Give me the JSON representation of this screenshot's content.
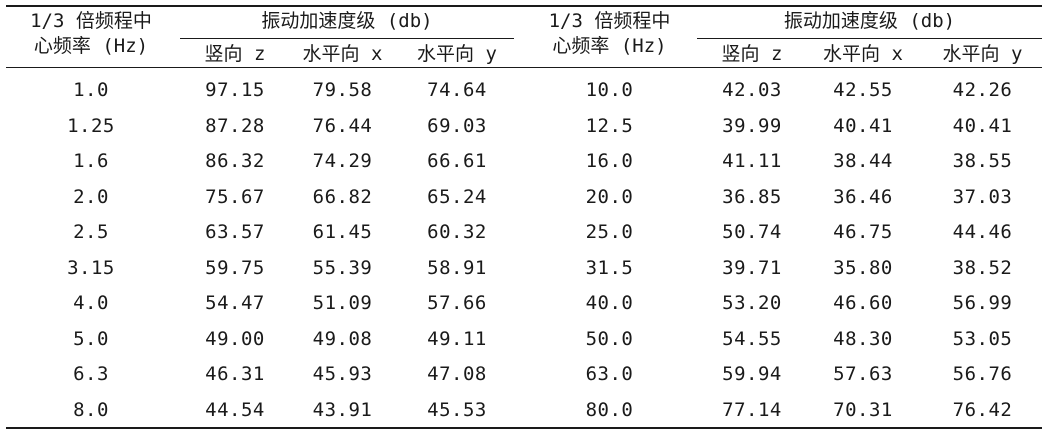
{
  "table": {
    "left": {
      "freq_header_line1": "1/3 倍频程中",
      "freq_header_line2": "心频率 (Hz)",
      "group_header": "振动加速度级 (db)",
      "col_vertical": "竖向 z",
      "col_horizontal_x": "水平向 x",
      "col_horizontal_y": "水平向 y",
      "rows": [
        {
          "freq": "1.0",
          "z": "97.15",
          "x": "79.58",
          "y": "74.64"
        },
        {
          "freq": "1.25",
          "z": "87.28",
          "x": "76.44",
          "y": "69.03"
        },
        {
          "freq": "1.6",
          "z": "86.32",
          "x": "74.29",
          "y": "66.61"
        },
        {
          "freq": "2.0",
          "z": "75.67",
          "x": "66.82",
          "y": "65.24"
        },
        {
          "freq": "2.5",
          "z": "63.57",
          "x": "61.45",
          "y": "60.32"
        },
        {
          "freq": "3.15",
          "z": "59.75",
          "x": "55.39",
          "y": "58.91"
        },
        {
          "freq": "4.0",
          "z": "54.47",
          "x": "51.09",
          "y": "57.66"
        },
        {
          "freq": "5.0",
          "z": "49.00",
          "x": "49.08",
          "y": "49.11"
        },
        {
          "freq": "6.3",
          "z": "46.31",
          "x": "45.93",
          "y": "47.08"
        },
        {
          "freq": "8.0",
          "z": "44.54",
          "x": "43.91",
          "y": "45.53"
        }
      ]
    },
    "right": {
      "freq_header_line1": "1/3 倍频程中",
      "freq_header_line2": "心频率 (Hz)",
      "group_header": "振动加速度级 (db)",
      "col_vertical": "竖向 z",
      "col_horizontal_x": "水平向 x",
      "col_horizontal_y": "水平向 y",
      "rows": [
        {
          "freq": "10.0",
          "z": "42.03",
          "x": "42.55",
          "y": "42.26"
        },
        {
          "freq": "12.5",
          "z": "39.99",
          "x": "40.41",
          "y": "40.41"
        },
        {
          "freq": "16.0",
          "z": "41.11",
          "x": "38.44",
          "y": "38.55"
        },
        {
          "freq": "20.0",
          "z": "36.85",
          "x": "36.46",
          "y": "37.03"
        },
        {
          "freq": "25.0",
          "z": "50.74",
          "x": "46.75",
          "y": "44.46"
        },
        {
          "freq": "31.5",
          "z": "39.71",
          "x": "35.80",
          "y": "38.52"
        },
        {
          "freq": "40.0",
          "z": "53.20",
          "x": "46.60",
          "y": "56.99"
        },
        {
          "freq": "50.0",
          "z": "54.55",
          "x": "48.30",
          "y": "53.05"
        },
        {
          "freq": "63.0",
          "z": "59.94",
          "x": "57.63",
          "y": "56.76"
        },
        {
          "freq": "80.0",
          "z": "77.14",
          "x": "70.31",
          "y": "76.42"
        }
      ]
    }
  }
}
